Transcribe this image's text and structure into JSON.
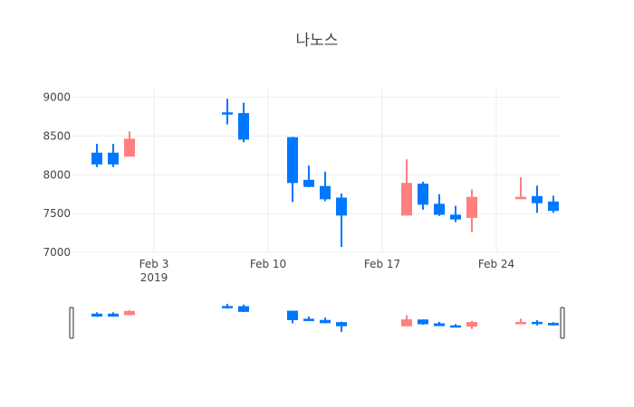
{
  "chart_data": {
    "type": "candlestick",
    "title": "나노스",
    "x_ticks": [
      {
        "date": "2019-02-03",
        "label": "Feb 3",
        "sub": "2019"
      },
      {
        "date": "2019-02-10",
        "label": "Feb 10",
        "sub": ""
      },
      {
        "date": "2019-02-17",
        "label": "Feb 17",
        "sub": ""
      },
      {
        "date": "2019-02-24",
        "label": "Feb 24",
        "sub": ""
      }
    ],
    "y_ticks": [
      7000,
      7500,
      8000,
      8500,
      9000
    ],
    "y_tick_labels": [
      "7000",
      "7500",
      "8000",
      "8500",
      "9000"
    ],
    "ylim": [
      7000,
      9100
    ],
    "xlim": [
      "2019-01-29",
      "2019-02-27"
    ],
    "grid": true,
    "range_slider": true,
    "increasing_color": "#ff7f7f",
    "decreasing_color": "#0077ff",
    "candles": [
      {
        "date": "2019-01-30",
        "open": 8280,
        "high": 8400,
        "low": 8100,
        "close": 8140
      },
      {
        "date": "2019-01-31",
        "open": 8280,
        "high": 8400,
        "low": 8100,
        "close": 8140
      },
      {
        "date": "2019-02-01",
        "open": 8240,
        "high": 8560,
        "low": 8240,
        "close": 8460
      },
      {
        "date": "2019-02-07",
        "open": 8800,
        "high": 8980,
        "low": 8650,
        "close": 8790
      },
      {
        "date": "2019-02-08",
        "open": 8790,
        "high": 8930,
        "low": 8420,
        "close": 8460
      },
      {
        "date": "2019-02-11",
        "open": 8480,
        "high": 8490,
        "low": 7650,
        "close": 7900
      },
      {
        "date": "2019-02-12",
        "open": 7930,
        "high": 8120,
        "low": 7840,
        "close": 7850
      },
      {
        "date": "2019-02-13",
        "open": 7850,
        "high": 8040,
        "low": 7660,
        "close": 7690
      },
      {
        "date": "2019-02-14",
        "open": 7700,
        "high": 7760,
        "low": 7070,
        "close": 7480
      },
      {
        "date": "2019-02-18",
        "open": 7480,
        "high": 8200,
        "low": 7480,
        "close": 7890
      },
      {
        "date": "2019-02-19",
        "open": 7880,
        "high": 7910,
        "low": 7550,
        "close": 7620
      },
      {
        "date": "2019-02-20",
        "open": 7620,
        "high": 7750,
        "low": 7470,
        "close": 7490
      },
      {
        "date": "2019-02-21",
        "open": 7480,
        "high": 7600,
        "low": 7390,
        "close": 7430
      },
      {
        "date": "2019-02-22",
        "open": 7450,
        "high": 7810,
        "low": 7260,
        "close": 7710
      },
      {
        "date": "2019-02-25",
        "open": 7690,
        "high": 7970,
        "low": 7690,
        "close": 7710
      },
      {
        "date": "2019-02-26",
        "open": 7720,
        "high": 7860,
        "low": 7510,
        "close": 7640
      },
      {
        "date": "2019-02-27",
        "open": 7650,
        "high": 7730,
        "low": 7510,
        "close": 7540
      }
    ]
  }
}
